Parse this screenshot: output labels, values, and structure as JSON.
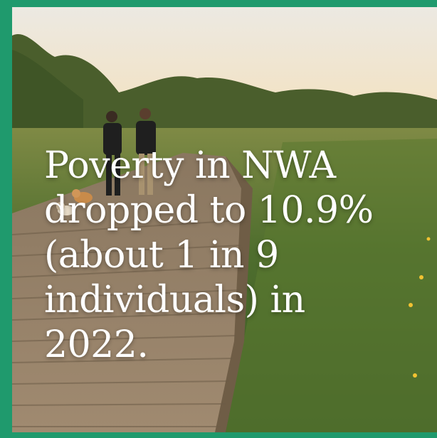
{
  "headline": {
    "text": "Poverty in NWA\ndropped to 10.9%\n(about 1 in 9\nindividuals) in\n2022."
  },
  "colors": {
    "frame": "#1f9a6d",
    "text": "#ffffff"
  }
}
